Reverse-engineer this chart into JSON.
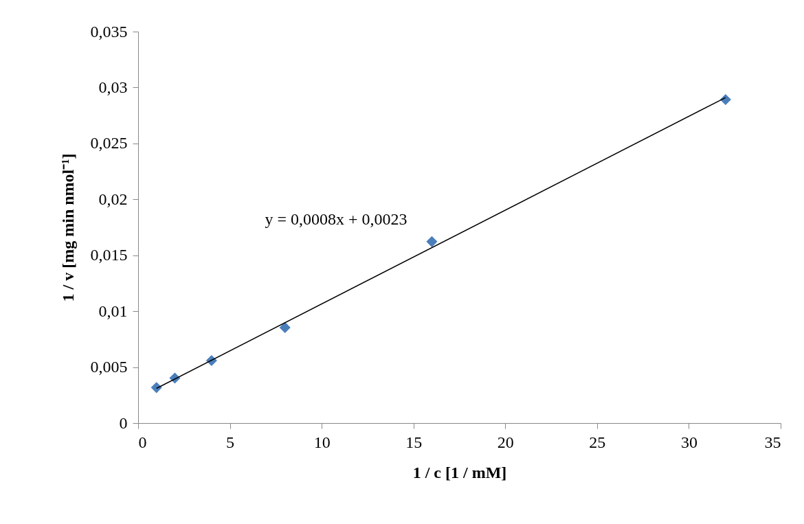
{
  "chart_data": {
    "type": "scatter",
    "xlabel": "1 / c [1 / mM]",
    "ylabel": "1 / v [mg min nmol⁻¹]",
    "x": [
      1,
      2,
      4,
      8,
      16,
      32
    ],
    "series": [
      {
        "color": "#4a7ebb",
        "marker": "diamond",
        "values": [
          0.00317,
          0.00402,
          0.00559,
          0.00854,
          0.01622,
          0.02892
        ]
      },
      {
        "type": "line",
        "color": "#000000",
        "marker": "none",
        "line_style": "solid",
        "x": [
          1,
          32
        ],
        "values": [
          0.0031,
          0.0291
        ]
      }
    ],
    "xlim": [
      0,
      35
    ],
    "xticks": [
      0,
      5,
      10,
      15,
      20,
      25,
      30,
      35
    ],
    "ylim": [
      0,
      0.035
    ],
    "yticks": [
      0,
      {
        "value": 0.005,
        "label": "0,005"
      },
      {
        "value": 0.01,
        "label": "0,01"
      },
      {
        "value": 0.015,
        "label": "0,015"
      },
      {
        "value": 0.02,
        "label": "0,02"
      },
      {
        "value": 0.025,
        "label": "0,025"
      },
      {
        "value": 0.03,
        "label": "0,03"
      },
      {
        "value": 0.035,
        "label": "0,035"
      }
    ],
    "annotations": [
      "y = 0,0008x + 0,0023"
    ]
  }
}
